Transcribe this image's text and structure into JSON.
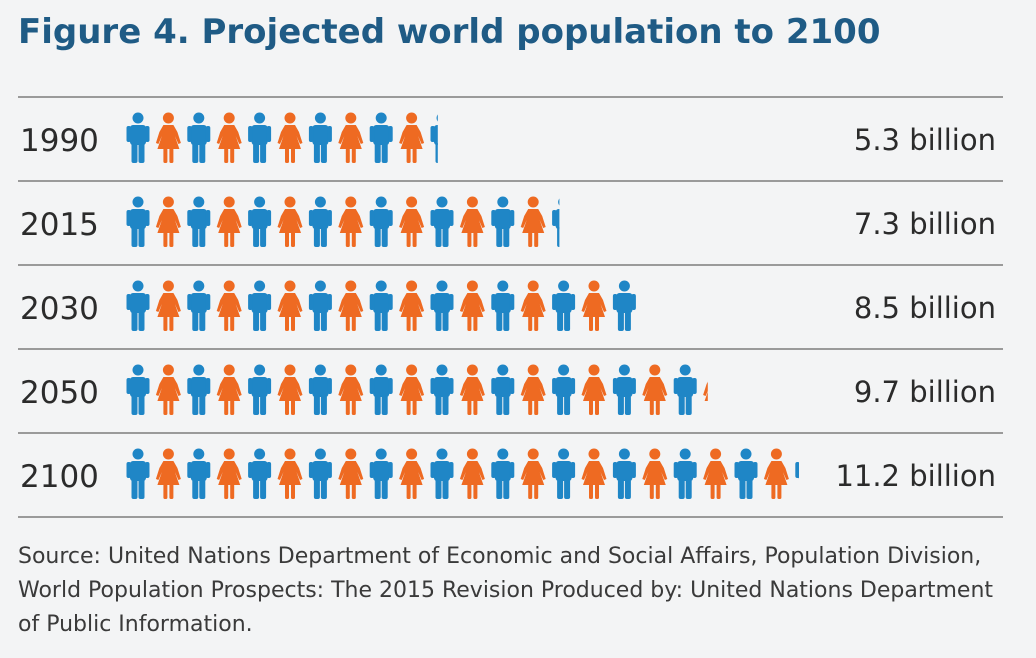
{
  "title": "Figure 4. Projected world population to 2100",
  "source": "Source: United Nations Department of Economic and Social Affairs, Population Division, World Population Prospects: The 2015 Revision Produced by: United Nations Department of Public Information.",
  "colors": {
    "male": "#1f86c6",
    "female": "#ee6a22",
    "rule": "#9a9a9a",
    "text": "#2b2b2b"
  },
  "icons": {
    "male": "man-icon",
    "female": "woman-icon"
  },
  "chart_data": {
    "type": "pictograph",
    "unit": "one figure represents 0.5 billion people",
    "categories": [
      "1990",
      "2015",
      "2030",
      "2050",
      "2100"
    ],
    "values": [
      5.3,
      7.3,
      8.5,
      9.7,
      11.2
    ],
    "value_labels": [
      "5.3 billion",
      "7.3 billion",
      "8.5 billion",
      "9.7 billion",
      "11.2 billion"
    ]
  }
}
